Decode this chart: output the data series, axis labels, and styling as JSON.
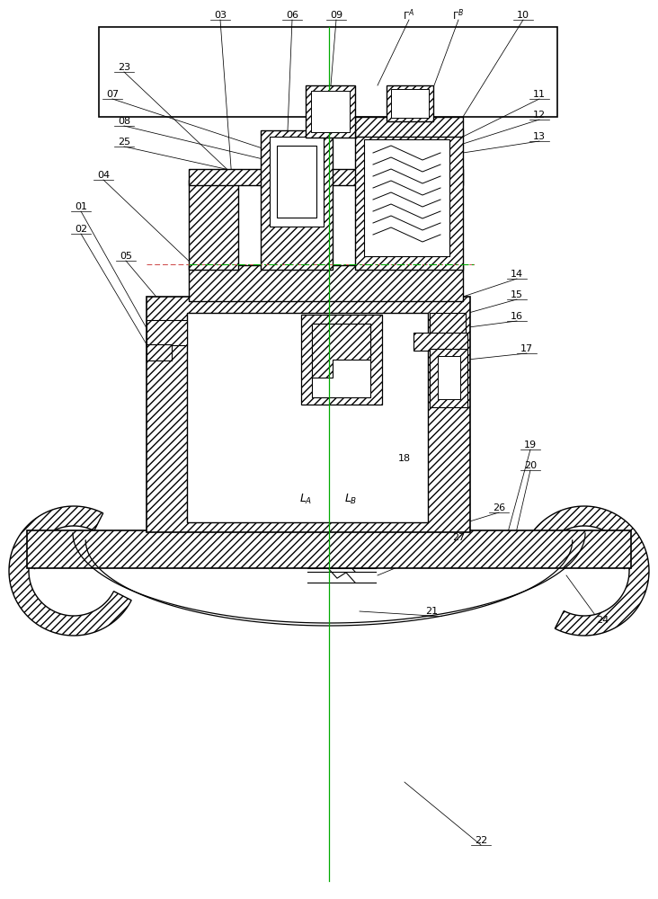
{
  "bg": "#ffffff",
  "lc": "#000000",
  "green": "#00aa00",
  "fig_w": 7.32,
  "fig_h": 10.0,
  "dpi": 100
}
